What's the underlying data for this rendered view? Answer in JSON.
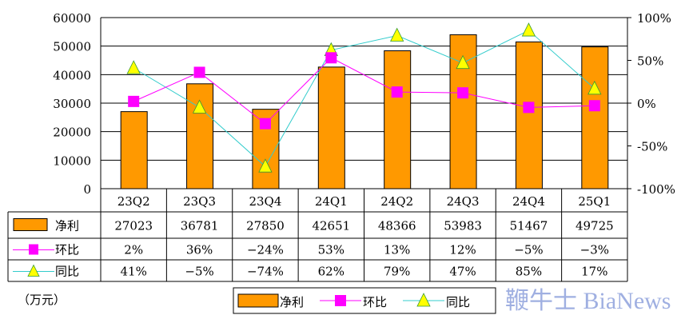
{
  "chart_data": {
    "type": "bar+line",
    "categories": [
      "23Q2",
      "23Q3",
      "23Q4",
      "24Q1",
      "24Q2",
      "24Q3",
      "24Q4",
      "25Q1"
    ],
    "unit": "（万元）",
    "left_axis": {
      "ylim": [
        0,
        60000
      ],
      "ticks": [
        "0",
        "10000",
        "20000",
        "30000",
        "40000",
        "50000",
        "60000"
      ],
      "tick_values": [
        0,
        10000,
        20000,
        30000,
        40000,
        50000,
        60000
      ]
    },
    "right_axis": {
      "ylim": [
        -100,
        100
      ],
      "ticks": [
        "-100%",
        "-50%",
        "0%",
        "50%",
        "100%"
      ],
      "tick_values": [
        -100,
        -50,
        0,
        50,
        100
      ]
    },
    "series": [
      {
        "name": "净利",
        "type": "bar",
        "axis": "left",
        "color": "#FF9900",
        "values": [
          27023,
          36781,
          27850,
          42651,
          48366,
          53983,
          51467,
          49725
        ],
        "labels": [
          "27023",
          "36781",
          "27850",
          "42651",
          "48366",
          "53983",
          "51467",
          "49725"
        ]
      },
      {
        "name": "环比",
        "type": "line",
        "axis": "right",
        "color": "#FF00FF",
        "marker": "square",
        "values": [
          2,
          36,
          -24,
          53,
          13,
          12,
          -5,
          -3
        ],
        "labels": [
          "2%",
          "36%",
          "-24%",
          "53%",
          "13%",
          "12%",
          "-5%",
          "-3%"
        ]
      },
      {
        "name": "同比",
        "type": "line",
        "axis": "right",
        "color": "#33CCCC",
        "marker": "triangle",
        "marker_color": "#FFFF00",
        "values": [
          41,
          -5,
          -74,
          62,
          79,
          47,
          85,
          17
        ],
        "labels": [
          "41%",
          "-5%",
          "-74%",
          "62%",
          "79%",
          "47%",
          "85%",
          "17%"
        ]
      }
    ],
    "legend": {
      "placement": "bottom",
      "entries": [
        "净利",
        "环比",
        "同比"
      ]
    },
    "grid": true,
    "watermark": "鞭牛士 BiaNews"
  }
}
